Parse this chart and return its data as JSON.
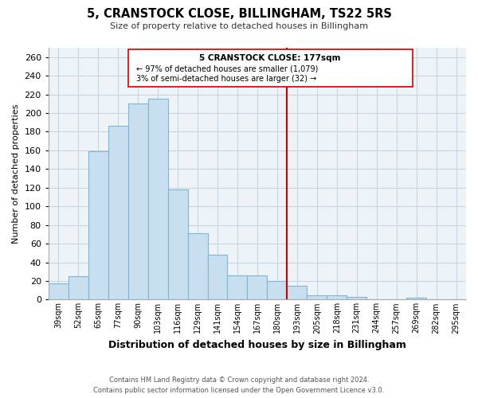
{
  "title": "5, CRANSTOCK CLOSE, BILLINGHAM, TS22 5RS",
  "subtitle": "Size of property relative to detached houses in Billingham",
  "xlabel": "Distribution of detached houses by size in Billingham",
  "ylabel": "Number of detached properties",
  "bin_labels": [
    "39sqm",
    "52sqm",
    "65sqm",
    "77sqm",
    "90sqm",
    "103sqm",
    "116sqm",
    "129sqm",
    "141sqm",
    "154sqm",
    "167sqm",
    "180sqm",
    "193sqm",
    "205sqm",
    "218sqm",
    "231sqm",
    "244sqm",
    "257sqm",
    "269sqm",
    "282sqm",
    "295sqm"
  ],
  "bar_values": [
    17,
    25,
    159,
    186,
    210,
    215,
    118,
    71,
    48,
    26,
    26,
    20,
    15,
    5,
    5,
    3,
    0,
    0,
    2,
    0,
    0
  ],
  "bar_color": "#c8dff0",
  "bar_edge_color": "#7fb5d5",
  "vline_x_idx": 11,
  "vline_color": "#cc0000",
  "annotation_title": "5 CRANSTOCK CLOSE: 177sqm",
  "annotation_line1": "← 97% of detached houses are smaller (1,079)",
  "annotation_line2": "3% of semi-detached houses are larger (32) →",
  "footer_line1": "Contains HM Land Registry data © Crown copyright and database right 2024.",
  "footer_line2": "Contains public sector information licensed under the Open Government Licence v3.0.",
  "ylim": [
    0,
    270
  ],
  "yticks": [
    0,
    20,
    40,
    60,
    80,
    100,
    120,
    140,
    160,
    180,
    200,
    220,
    240,
    260
  ],
  "background_color": "#eef3f8",
  "grid_color": "#c8d4e0",
  "plot_bg_color": "#eef3f8"
}
